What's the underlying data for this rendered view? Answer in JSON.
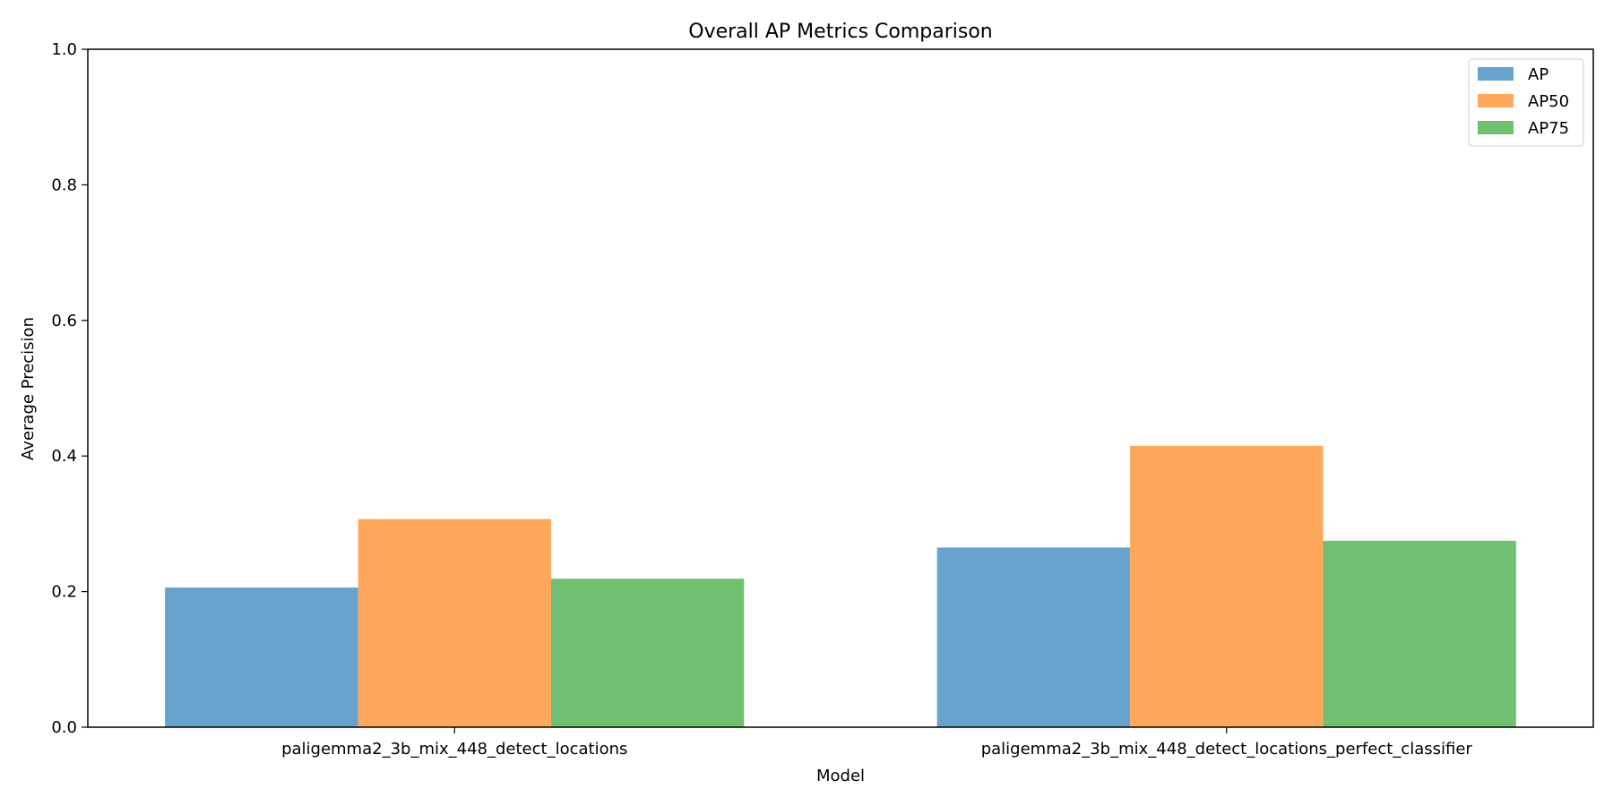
{
  "chart_data": {
    "type": "bar",
    "title": "Overall AP Metrics Comparison",
    "xlabel": "Model",
    "ylabel": "Average Precision",
    "ylim": [
      0,
      1.0
    ],
    "yticks": [
      "0.0",
      "0.2",
      "0.4",
      "0.6",
      "0.8",
      "1.0"
    ],
    "categories": [
      "paligemma2_3b_mix_448_detect_locations",
      "paligemma2_3b_mix_448_detect_locations_perfect_classifier"
    ],
    "series": [
      {
        "name": "AP",
        "color": "#4c93c3",
        "values": [
          0.206,
          0.265
        ]
      },
      {
        "name": "AP50",
        "color": "#ff993f",
        "values": [
          0.307,
          0.415
        ]
      },
      {
        "name": "AP75",
        "color": "#58b457",
        "values": [
          0.219,
          0.275
        ]
      }
    ],
    "grid": false,
    "legend_position": "top-right"
  }
}
